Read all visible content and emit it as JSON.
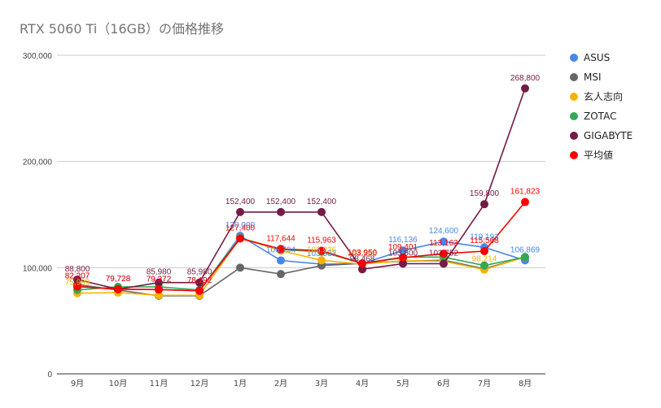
{
  "title": "RTX 5060 Ti（16GB）の価格推移",
  "chart_data": {
    "type": "line",
    "title": "RTX 5060 Ti（16GB）の価格推移",
    "xlabel": "",
    "ylabel": "",
    "categories": [
      "9月",
      "10月",
      "11月",
      "12月",
      "1月",
      "2月",
      "3月",
      "4月",
      "5月",
      "6月",
      "7月",
      "8月"
    ],
    "ylim": [
      0,
      300000
    ],
    "y_ticks": [
      "0",
      "100,000",
      "200,000",
      "300,000"
    ],
    "grid": true,
    "legend_position": "right",
    "series": [
      {
        "name": "ASUS",
        "color": "#4a86e8",
        "values": [
          82207,
          79728,
          79372,
          78192,
          130000,
          106794,
          103333,
          103950,
          116136,
          124600,
          119193,
          106869
        ],
        "labels": [
          "82,207",
          "79,728",
          "79,372",
          "78,192",
          "130,000",
          "106,794",
          "103,333",
          "103,950",
          "116,136",
          "124,600",
          "119,193",
          "106,869"
        ]
      },
      {
        "name": "MSI",
        "color": "#666666",
        "values": [
          84000,
          79000,
          73500,
          73500,
          100000,
          94000,
          102000,
          104000,
          106000,
          107000,
          99000,
          110000
        ],
        "labels": []
      },
      {
        "name": "玄人志向",
        "color": "#f6b400",
        "values": [
          75999,
          76500,
          74000,
          74000,
          128000,
          116000,
          106936,
          103295,
          106500,
          106000,
          98214,
          110000
        ],
        "labels": [
          "75,999",
          "",
          "",
          "",
          "",
          "",
          "106,936",
          "103,295",
          "",
          "",
          "98,214",
          ""
        ]
      },
      {
        "name": "ZOTAC",
        "color": "#34a853",
        "values": [
          79000,
          82000,
          82000,
          79000,
          128000,
          117000,
          115000,
          104000,
          110000,
          110000,
          102000,
          110000
        ],
        "labels": []
      },
      {
        "name": "GIGABYTE",
        "color": "#741b47",
        "values": [
          88800,
          79728,
          85980,
          85980,
          152400,
          152400,
          152400,
          98468,
          103800,
          103752,
          159800,
          268800
        ],
        "labels": [
          "88,800",
          "",
          "85,980",
          "85,980",
          "152,400",
          "152,400",
          "152,400",
          "98,468",
          "103,800",
          "103,752",
          "159,800",
          "268,800"
        ]
      },
      {
        "name": "平均値",
        "color": "#ff0000",
        "values": [
          82207,
          79728,
          79372,
          78192,
          127400,
          117644,
          115963,
          103950,
          109401,
          113163,
          115568,
          161823
        ],
        "labels": [
          "82,207",
          "79,728",
          "79,372",
          "78,192",
          "127,400",
          "117,644",
          "115,963",
          "103,950",
          "109,401",
          "113,163",
          "115,568",
          "161,823"
        ]
      }
    ]
  }
}
